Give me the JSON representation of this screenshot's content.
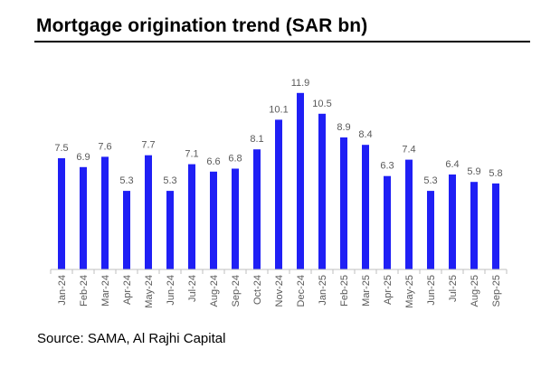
{
  "title": "Mortgage origination trend (SAR bn)",
  "source": "Source: SAMA, Al Rajhi Capital",
  "colors": {
    "bar": "#1f1ff5",
    "axis": "#bfbfbf",
    "label": "#595959"
  },
  "chart_data": {
    "type": "bar",
    "title": "Mortgage origination trend (SAR bn)",
    "xlabel": "",
    "ylabel": "",
    "grid": false,
    "legend": "none",
    "ylim": [
      0,
      13
    ],
    "categories": [
      "Jan-24",
      "Feb-24",
      "Mar-24",
      "Apr-24",
      "May-24",
      "Jun-24",
      "Jul-24",
      "Aug-24",
      "Sep-24",
      "Oct-24",
      "Nov-24",
      "Dec-24",
      "Jan-25",
      "Feb-25",
      "Mar-25",
      "Apr-25",
      "May-25",
      "Jun-25",
      "Jul-25",
      "Aug-25",
      "Sep-25"
    ],
    "values": [
      7.5,
      6.9,
      7.6,
      5.3,
      7.7,
      5.3,
      7.1,
      6.6,
      6.8,
      8.1,
      10.1,
      11.9,
      10.5,
      8.9,
      8.4,
      6.3,
      7.4,
      5.3,
      6.4,
      5.9,
      5.8
    ]
  }
}
